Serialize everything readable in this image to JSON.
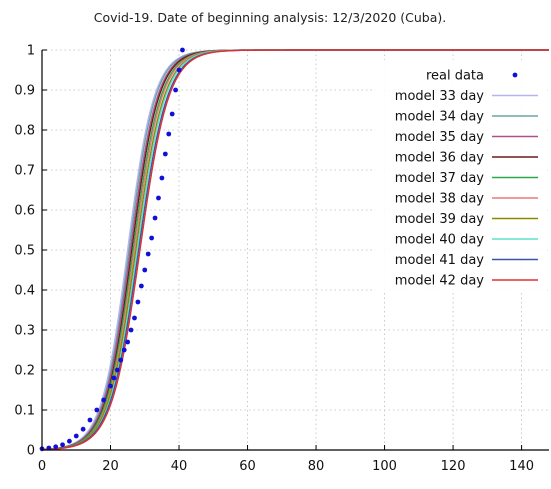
{
  "chart_data": {
    "type": "line",
    "title": "Covid-19. Date of beginning analysis: 12/3/2020 (Cuba).",
    "xlabel": "",
    "ylabel": "",
    "xlim": [
      0,
      148
    ],
    "ylim": [
      0,
      1
    ],
    "x_ticks": [
      0,
      20,
      40,
      60,
      80,
      100,
      120,
      140
    ],
    "y_ticks": [
      "0",
      "0.1",
      "0.2",
      "0.3",
      "0.4",
      "0.5",
      "0.6",
      "0.7",
      "0.8",
      "0.9",
      "1"
    ],
    "grid": true,
    "legend_position": "top-right",
    "series": [
      {
        "name": "real data",
        "kind": "points",
        "color": "#1010d8",
        "x": [
          0,
          2,
          4,
          6,
          8,
          10,
          12,
          14,
          16,
          18,
          20,
          21,
          22,
          23,
          24,
          25,
          26,
          27,
          28,
          29,
          30,
          31,
          32,
          33,
          34,
          35,
          36,
          37,
          38,
          39,
          40,
          41
        ],
        "y": [
          0.003,
          0.005,
          0.008,
          0.013,
          0.022,
          0.035,
          0.052,
          0.075,
          0.1,
          0.125,
          0.16,
          0.18,
          0.2,
          0.225,
          0.25,
          0.27,
          0.3,
          0.33,
          0.37,
          0.41,
          0.45,
          0.49,
          0.53,
          0.58,
          0.63,
          0.68,
          0.74,
          0.79,
          0.84,
          0.9,
          0.95,
          1.0
        ]
      },
      {
        "name": "model 33 day",
        "kind": "line",
        "color": "#b3b3f5",
        "midpoint": 25.0,
        "steepness": 0.26
      },
      {
        "name": "model 34 day",
        "kind": "line",
        "color": "#66a6a6",
        "midpoint": 25.4,
        "steepness": 0.26
      },
      {
        "name": "model 35 day",
        "kind": "line",
        "color": "#b0508a",
        "midpoint": 25.8,
        "steepness": 0.255
      },
      {
        "name": "model 36 day",
        "kind": "line",
        "color": "#6b1a1a",
        "midpoint": 26.2,
        "steepness": 0.255
      },
      {
        "name": "model 37 day",
        "kind": "line",
        "color": "#2aa84a",
        "midpoint": 26.6,
        "steepness": 0.25
      },
      {
        "name": "model 38 day",
        "kind": "line",
        "color": "#e87a7a",
        "midpoint": 27.0,
        "steepness": 0.25
      },
      {
        "name": "model 39 day",
        "kind": "line",
        "color": "#8a8a00",
        "midpoint": 27.4,
        "steepness": 0.245
      },
      {
        "name": "model 40 day",
        "kind": "line",
        "color": "#5fe0c8",
        "midpoint": 27.8,
        "steepness": 0.245
      },
      {
        "name": "model 41 day",
        "kind": "line",
        "color": "#3a55a8",
        "midpoint": 28.2,
        "steepness": 0.24
      },
      {
        "name": "model 42 day",
        "kind": "line",
        "color": "#e03030",
        "midpoint": 28.6,
        "steepness": 0.24
      }
    ]
  }
}
